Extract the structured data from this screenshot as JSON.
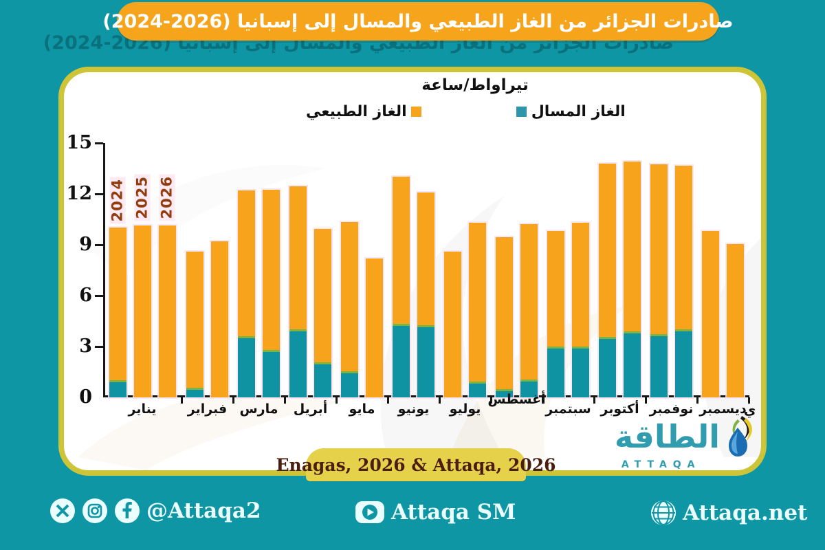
{
  "title": "صادرات الجزائر من الغاز الطبيعي والمسال إلى إسبانيا (2026-2024)",
  "source": "Enagas, 2026 & Attaqa, 2026",
  "logo": {
    "arabic": "الطاقة",
    "latin": "ATTAQA"
  },
  "footer": {
    "social_handle": "@Attaqa2",
    "sm_label": "Attaqa SM",
    "website": "Attaqa.net"
  },
  "colors": {
    "background": "#0e96a4",
    "banner": "#f7a41d",
    "title_shadow": "#0a6e78",
    "card_border": "#cdc437",
    "bar_lng": "#0f93a2",
    "bar_ng": "#f7a41c",
    "legend_lng": "#2e96aa",
    "legend_ng": "#f5a41c",
    "divider_green": "#7cb342",
    "year_label": "#8f3c0e",
    "source_pill": "#e5d24a",
    "source_text": "#4a1d0f",
    "logo_teal": "#2f9cb0",
    "footer_text": "#eafdff"
  },
  "chart_data": {
    "type": "bar",
    "stacked": true,
    "title": "صادرات الجزائر من الغاز الطبيعي والمسال إلى إسبانيا (2024-2026)",
    "ylabel": "تيراواط/ساعة",
    "unit": "TWh",
    "ylim": [
      0,
      15
    ],
    "yticks": [
      0,
      3,
      6,
      9,
      12,
      15
    ],
    "grid": false,
    "legend_position": "top-center",
    "series_names": {
      "lng": "الغاز المسال",
      "ng": "الغاز الطبيعي"
    },
    "clipped_label": "ي",
    "year_annotations": [
      "2024",
      "2025",
      "2026"
    ],
    "months": [
      {
        "key": "jan",
        "name": "يناير",
        "bars": [
          {
            "year": 2024,
            "lng": 1.0,
            "ng": 9.0
          },
          {
            "year": 2025,
            "lng": 0,
            "ng": 10.15
          },
          {
            "year": 2026,
            "lng": 0,
            "ng": 10.15
          }
        ]
      },
      {
        "key": "feb",
        "name": "فبراير",
        "bars": [
          {
            "year": 2024,
            "lng": 0.55,
            "ng": 8.05
          },
          {
            "year": 2025,
            "lng": 0,
            "ng": 9.2
          }
        ]
      },
      {
        "key": "mar",
        "name": "مارس",
        "bars": [
          {
            "year": 2024,
            "lng": 3.6,
            "ng": 8.6
          },
          {
            "year": 2025,
            "lng": 2.8,
            "ng": 9.45
          }
        ]
      },
      {
        "key": "apr",
        "name": "أبريل",
        "bars": [
          {
            "year": 2024,
            "lng": 4.0,
            "ng": 8.45
          },
          {
            "year": 2025,
            "lng": 2.05,
            "ng": 7.9
          }
        ]
      },
      {
        "key": "may",
        "name": "مايو",
        "bars": [
          {
            "year": 2024,
            "lng": 1.55,
            "ng": 8.8
          },
          {
            "year": 2025,
            "lng": 0,
            "ng": 8.2
          }
        ]
      },
      {
        "key": "jun",
        "name": "يونيو",
        "bars": [
          {
            "year": 2024,
            "lng": 4.35,
            "ng": 8.65
          },
          {
            "year": 2025,
            "lng": 4.25,
            "ng": 7.85
          }
        ]
      },
      {
        "key": "jul",
        "name": "يوليو",
        "bars": [
          {
            "year": 2024,
            "lng": 0,
            "ng": 8.6
          },
          {
            "year": 2025,
            "lng": 0.95,
            "ng": 9.35
          }
        ]
      },
      {
        "key": "aug",
        "name": "أغسطس",
        "raised": true,
        "bars": [
          {
            "year": 2024,
            "lng": 0.5,
            "ng": 8.95
          },
          {
            "year": 2025,
            "lng": 1.05,
            "ng": 9.15
          }
        ]
      },
      {
        "key": "sep",
        "name": "سبتمبر",
        "bars": [
          {
            "year": 2024,
            "lng": 3.0,
            "ng": 6.8
          },
          {
            "year": 2025,
            "lng": 3.0,
            "ng": 7.3
          }
        ]
      },
      {
        "key": "oct",
        "name": "أكتوبر",
        "bars": [
          {
            "year": 2024,
            "lng": 3.55,
            "ng": 10.25
          },
          {
            "year": 2025,
            "lng": 3.9,
            "ng": 10.0
          }
        ]
      },
      {
        "key": "nov",
        "name": "نوفمبر",
        "bars": [
          {
            "year": 2024,
            "lng": 3.75,
            "ng": 10.0
          },
          {
            "year": 2025,
            "lng": 4.0,
            "ng": 9.65
          }
        ]
      },
      {
        "key": "dec",
        "name": "ديسمبر",
        "bars": [
          {
            "year": 2024,
            "lng": 0,
            "ng": 9.8
          },
          {
            "year": 2025,
            "lng": 0,
            "ng": 9.05
          }
        ]
      }
    ]
  }
}
